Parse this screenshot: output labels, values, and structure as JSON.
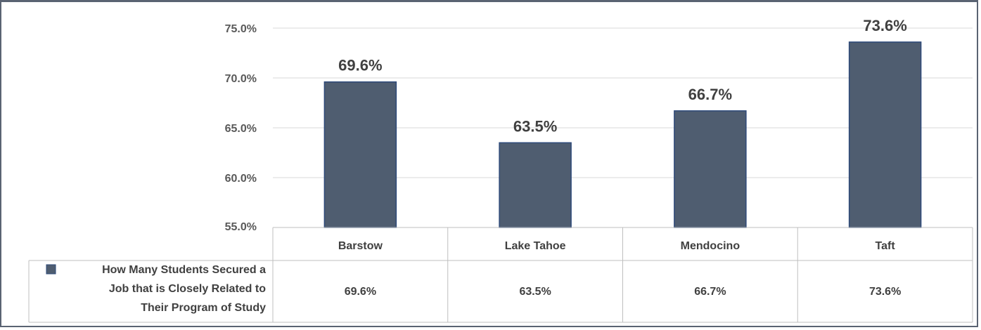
{
  "chart_data": {
    "type": "bar",
    "title": "",
    "xlabel": "",
    "ylabel": "",
    "categories": [
      "Barstow",
      "Lake Tahoe",
      "Mendocino",
      "Taft"
    ],
    "series": [
      {
        "name": "How Many Students Secured a Job that is Closely Related to Their Program of Study",
        "values": [
          69.6,
          63.5,
          66.7,
          73.6
        ],
        "labels": [
          "69.6%",
          "63.5%",
          "66.7%",
          "73.6%"
        ],
        "color": "#4f5d70"
      }
    ],
    "legend_lines": [
      "How Many Students Secured a",
      "Job that is Closely Related to",
      "Their Program of Study"
    ],
    "yticks": [
      55.0,
      60.0,
      65.0,
      70.0,
      75.0
    ],
    "ytick_labels": [
      "55.0%",
      "60.0%",
      "65.0%",
      "70.0%",
      "75.0%"
    ],
    "ylim": [
      55,
      75
    ],
    "grid": true,
    "legend_placement": "data-table-left",
    "colors": {
      "bar": "#4f5d70",
      "bar_edge": "#2e4a7a",
      "grid": "#d9d9d9",
      "frame": "#5a6372"
    }
  }
}
